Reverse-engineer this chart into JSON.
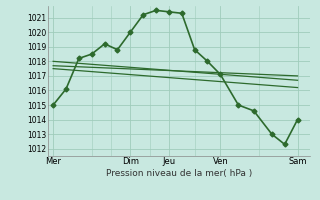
{
  "background_color": "#c8e8e0",
  "grid_color": "#a0ccbb",
  "line_color": "#2d6a2d",
  "xlabel": "Pression niveau de la mer( hPa )",
  "ylim": [
    1011.5,
    1021.8
  ],
  "yticks": [
    1012,
    1013,
    1014,
    1015,
    1016,
    1017,
    1018,
    1019,
    1020,
    1021
  ],
  "xtick_labels": [
    "Mer",
    "",
    "Dim",
    "Jeu",
    "",
    "Ven",
    "",
    "Sam"
  ],
  "xtick_positions": [
    0,
    1.5,
    3,
    4.5,
    5.5,
    6.5,
    8,
    9.5
  ],
  "xlim": [
    -0.2,
    10.0
  ],
  "vlines": [
    0,
    3,
    4.5,
    6.5,
    9.5
  ],
  "series": [
    {
      "x": [
        0,
        0.5,
        1.0,
        1.5,
        2.0,
        2.5,
        3.0,
        3.5,
        4.0,
        4.5,
        5.0,
        5.5,
        6.0,
        6.5,
        7.2,
        7.8,
        8.5,
        9.0,
        9.5
      ],
      "y": [
        1015.0,
        1016.1,
        1018.2,
        1018.5,
        1019.2,
        1018.8,
        1020.0,
        1021.2,
        1021.5,
        1021.4,
        1021.3,
        1018.8,
        1018.0,
        1017.1,
        1015.0,
        1014.6,
        1013.0,
        1012.3,
        1014.0
      ],
      "marker": "D",
      "markersize": 2.5,
      "linewidth": 1.2,
      "has_marker": true
    },
    {
      "x": [
        0,
        9.5
      ],
      "y": [
        1017.7,
        1017.0
      ],
      "has_marker": false,
      "linewidth": 0.9
    },
    {
      "x": [
        0,
        9.5
      ],
      "y": [
        1018.0,
        1016.7
      ],
      "has_marker": false,
      "linewidth": 0.9
    },
    {
      "x": [
        0,
        9.5
      ],
      "y": [
        1017.5,
        1016.2
      ],
      "has_marker": false,
      "linewidth": 0.9
    }
  ]
}
